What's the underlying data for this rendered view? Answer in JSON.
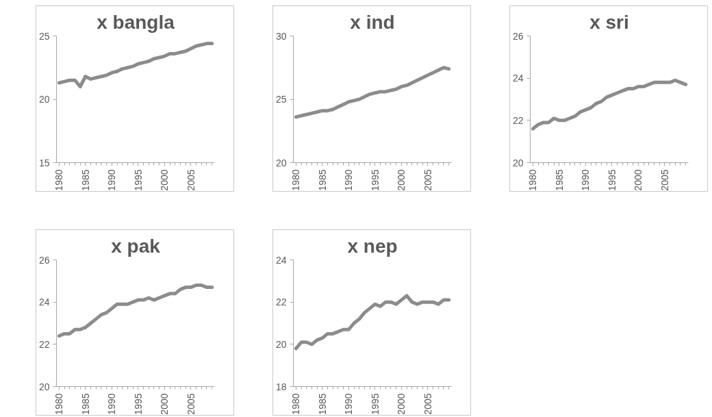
{
  "chart_data": [
    {
      "type": "line",
      "title": "x bangla",
      "color": "#8c8c8c",
      "xlim": [
        1979.5,
        2009.5
      ],
      "ylim": [
        15,
        25
      ],
      "xticks": [
        1980,
        1985,
        1990,
        1995,
        2000,
        2005
      ],
      "yticks": [
        15,
        20,
        25
      ],
      "x": [
        1980,
        1981,
        1982,
        1983,
        1984,
        1985,
        1986,
        1987,
        1988,
        1989,
        1990,
        1991,
        1992,
        1993,
        1994,
        1995,
        1996,
        1997,
        1998,
        1999,
        2000,
        2001,
        2002,
        2003,
        2004,
        2005,
        2006,
        2007,
        2008,
        2009
      ],
      "values": [
        21.3,
        21.4,
        21.5,
        21.5,
        21.0,
        21.8,
        21.6,
        21.7,
        21.8,
        21.9,
        22.1,
        22.2,
        22.4,
        22.5,
        22.6,
        22.8,
        22.9,
        23.0,
        23.2,
        23.3,
        23.4,
        23.6,
        23.6,
        23.7,
        23.8,
        24.0,
        24.2,
        24.3,
        24.4,
        24.4
      ]
    },
    {
      "type": "line",
      "title": "x ind",
      "color": "#8c8c8c",
      "xlim": [
        1979.5,
        2009.5
      ],
      "ylim": [
        20,
        30
      ],
      "xticks": [
        1980,
        1985,
        1990,
        1995,
        2000,
        2005
      ],
      "yticks": [
        20,
        25,
        30
      ],
      "x": [
        1980,
        1981,
        1982,
        1983,
        1984,
        1985,
        1986,
        1987,
        1988,
        1989,
        1990,
        1991,
        1992,
        1993,
        1994,
        1995,
        1996,
        1997,
        1998,
        1999,
        2000,
        2001,
        2002,
        2003,
        2004,
        2005,
        2006,
        2007,
        2008,
        2009
      ],
      "values": [
        23.6,
        23.7,
        23.8,
        23.9,
        24.0,
        24.1,
        24.1,
        24.2,
        24.4,
        24.6,
        24.8,
        24.9,
        25.0,
        25.2,
        25.4,
        25.5,
        25.6,
        25.6,
        25.7,
        25.8,
        26.0,
        26.1,
        26.3,
        26.5,
        26.7,
        26.9,
        27.1,
        27.3,
        27.5,
        27.4
      ]
    },
    {
      "type": "line",
      "title": "x sri",
      "color": "#8c8c8c",
      "xlim": [
        1979.5,
        2009.5
      ],
      "ylim": [
        20,
        26
      ],
      "xticks": [
        1980,
        1985,
        1990,
        1995,
        2000,
        2005
      ],
      "yticks": [
        20,
        22,
        24,
        26
      ],
      "x": [
        1980,
        1981,
        1982,
        1983,
        1984,
        1985,
        1986,
        1987,
        1988,
        1989,
        1990,
        1991,
        1992,
        1993,
        1994,
        1995,
        1996,
        1997,
        1998,
        1999,
        2000,
        2001,
        2002,
        2003,
        2004,
        2005,
        2006,
        2007,
        2008,
        2009
      ],
      "values": [
        21.6,
        21.8,
        21.9,
        21.9,
        22.1,
        22.0,
        22.0,
        22.1,
        22.2,
        22.4,
        22.5,
        22.6,
        22.8,
        22.9,
        23.1,
        23.2,
        23.3,
        23.4,
        23.5,
        23.5,
        23.6,
        23.6,
        23.7,
        23.8,
        23.8,
        23.8,
        23.8,
        23.9,
        23.8,
        23.7
      ]
    },
    {
      "type": "line",
      "title": "x pak",
      "color": "#8c8c8c",
      "xlim": [
        1979.5,
        2009.5
      ],
      "ylim": [
        20,
        26
      ],
      "xticks": [
        1980,
        1985,
        1990,
        1995,
        2000,
        2005
      ],
      "yticks": [
        20,
        22,
        24,
        26
      ],
      "x": [
        1980,
        1981,
        1982,
        1983,
        1984,
        1985,
        1986,
        1987,
        1988,
        1989,
        1990,
        1991,
        1992,
        1993,
        1994,
        1995,
        1996,
        1997,
        1998,
        1999,
        2000,
        2001,
        2002,
        2003,
        2004,
        2005,
        2006,
        2007,
        2008,
        2009
      ],
      "values": [
        22.4,
        22.5,
        22.5,
        22.7,
        22.7,
        22.8,
        23.0,
        23.2,
        23.4,
        23.5,
        23.7,
        23.9,
        23.9,
        23.9,
        24.0,
        24.1,
        24.1,
        24.2,
        24.1,
        24.2,
        24.3,
        24.4,
        24.4,
        24.6,
        24.7,
        24.7,
        24.8,
        24.8,
        24.7,
        24.7
      ]
    },
    {
      "type": "line",
      "title": "x nep",
      "color": "#8c8c8c",
      "xlim": [
        1979.5,
        2009.5
      ],
      "ylim": [
        18,
        24
      ],
      "xticks": [
        1980,
        1985,
        1990,
        1995,
        2000,
        2005
      ],
      "yticks": [
        18,
        20,
        22,
        24
      ],
      "x": [
        1980,
        1981,
        1982,
        1983,
        1984,
        1985,
        1986,
        1987,
        1988,
        1989,
        1990,
        1991,
        1992,
        1993,
        1994,
        1995,
        1996,
        1997,
        1998,
        1999,
        2000,
        2001,
        2002,
        2003,
        2004,
        2005,
        2006,
        2007,
        2008,
        2009
      ],
      "values": [
        19.8,
        20.1,
        20.1,
        20.0,
        20.2,
        20.3,
        20.5,
        20.5,
        20.6,
        20.7,
        20.7,
        21.0,
        21.2,
        21.5,
        21.7,
        21.9,
        21.8,
        22.0,
        22.0,
        21.9,
        22.1,
        22.3,
        22.0,
        21.9,
        22.0,
        22.0,
        22.0,
        21.9,
        22.1,
        22.1
      ]
    }
  ]
}
